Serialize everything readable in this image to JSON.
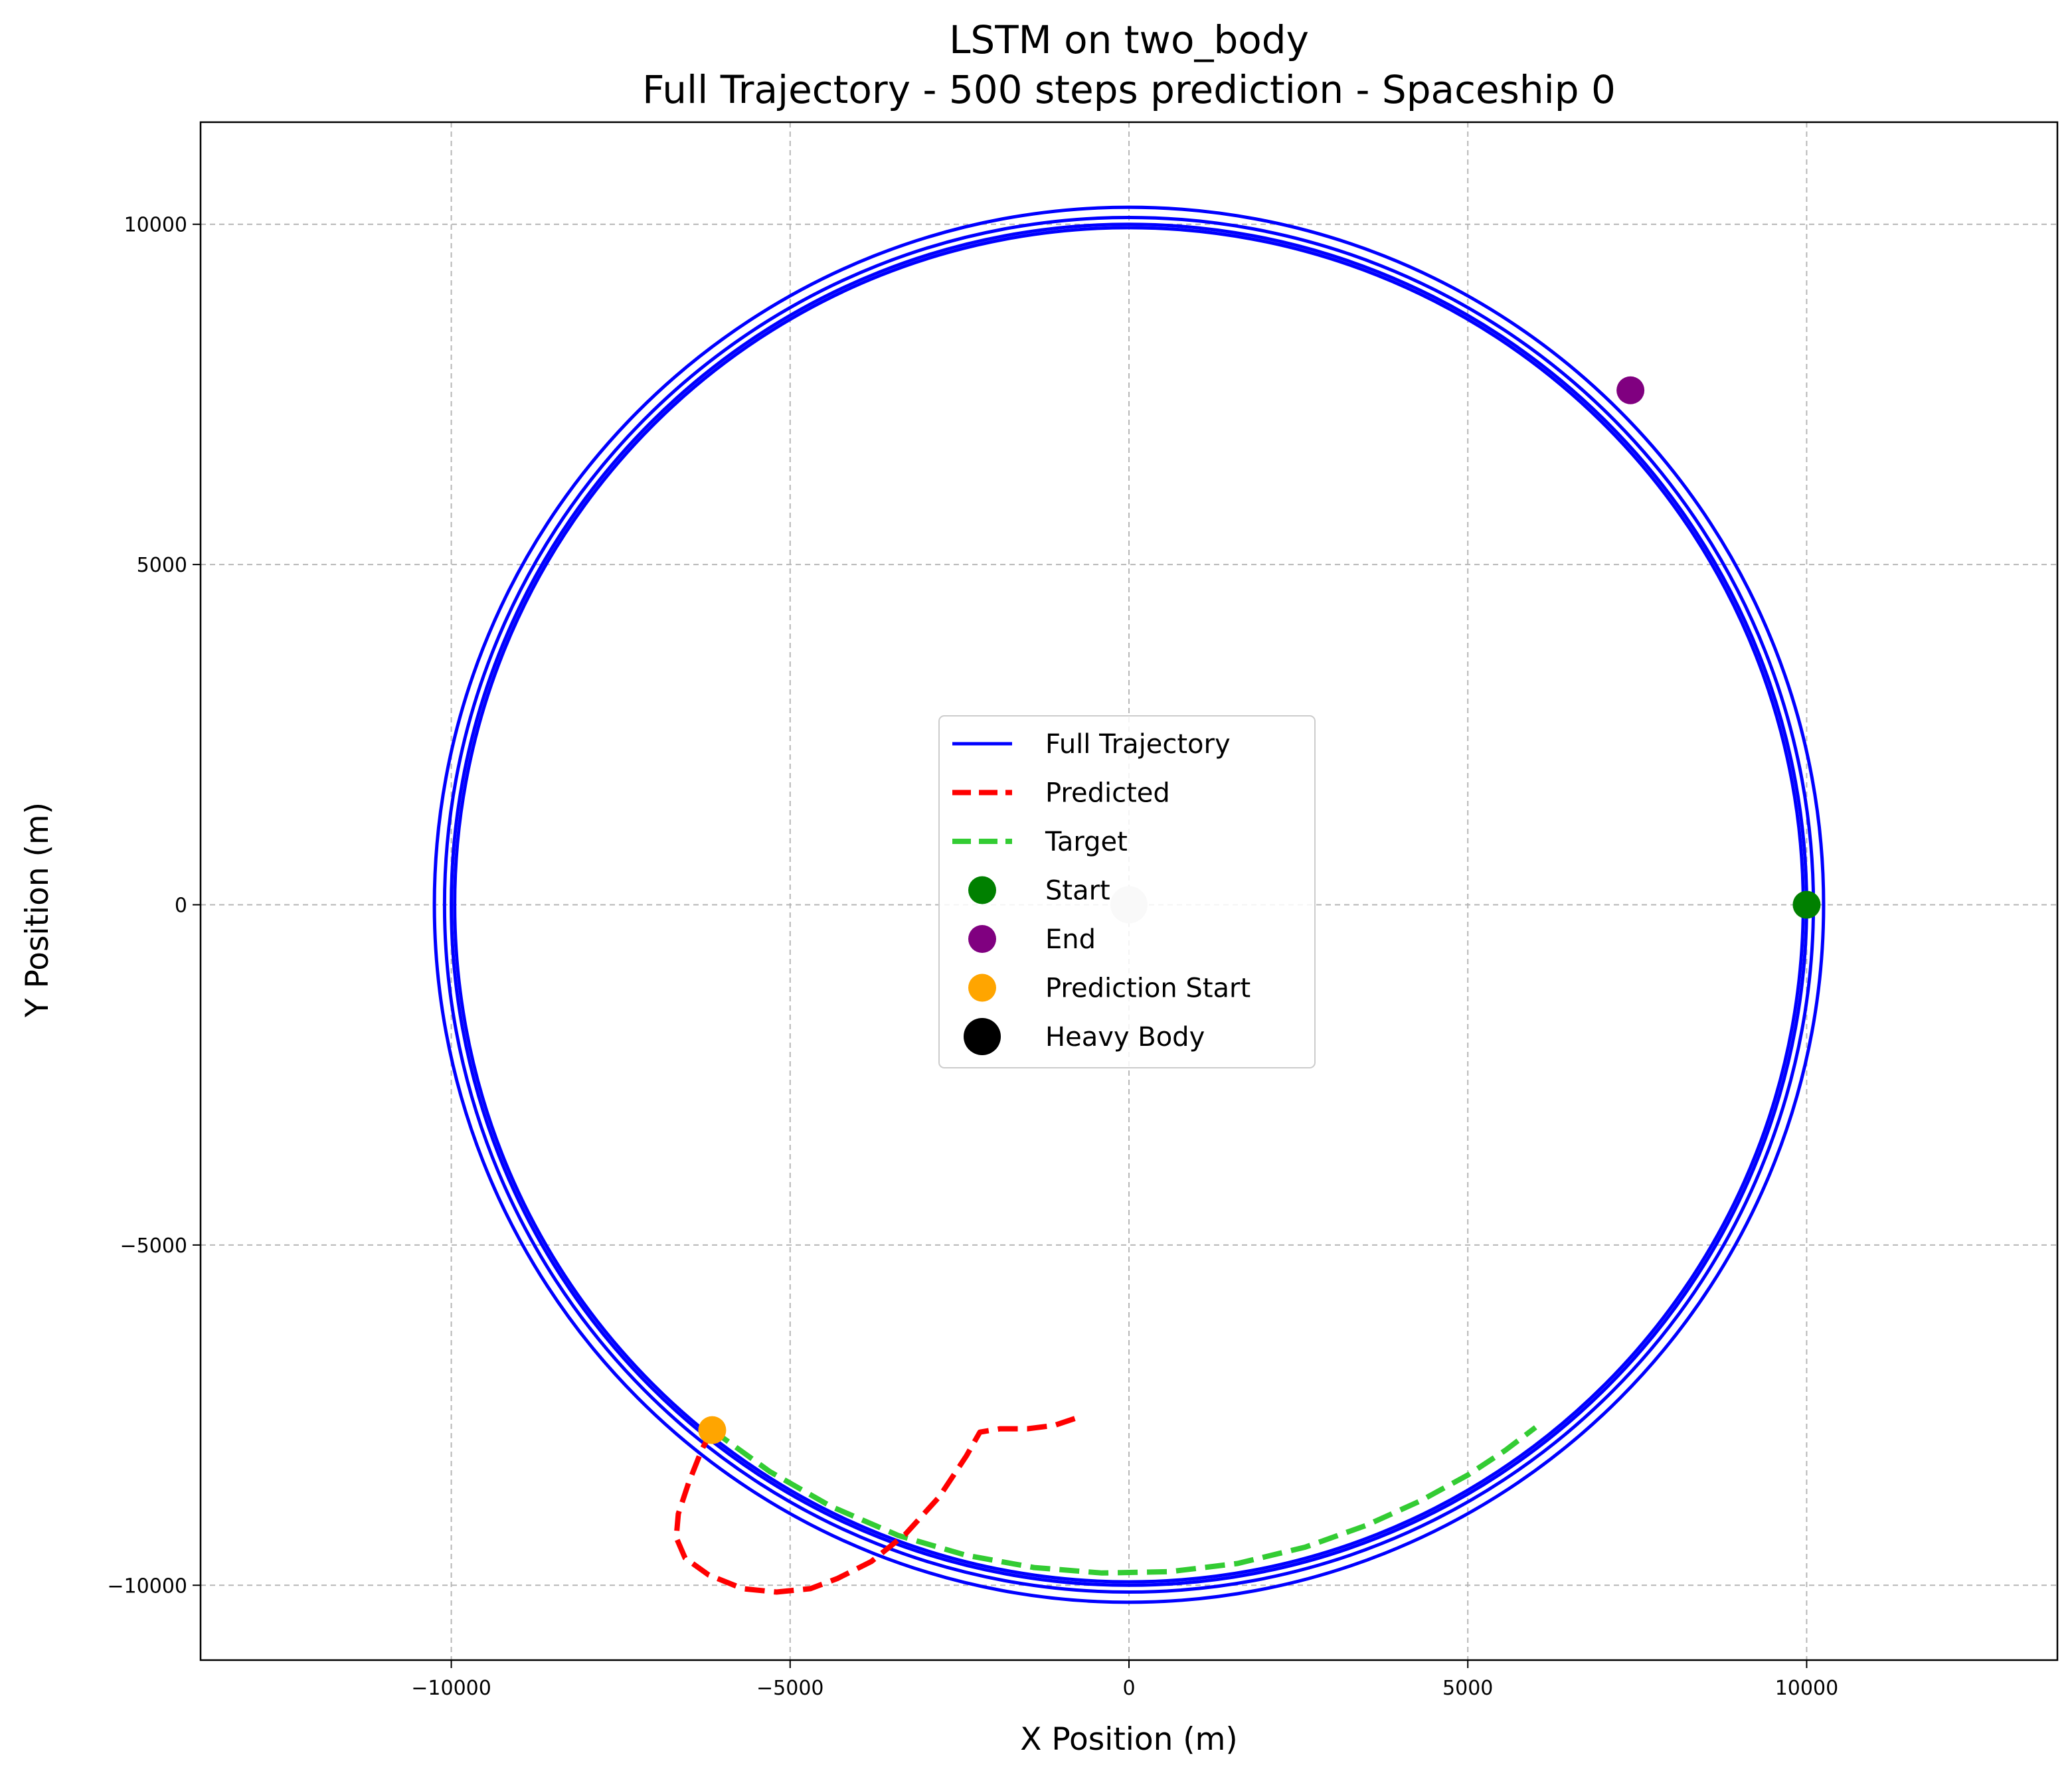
{
  "chart_data": {
    "type": "line",
    "title": "LSTM on two_body",
    "subtitle": "Full Trajectory - 500 steps prediction - Spaceship 0",
    "xlabel": "X Position (m)",
    "ylabel": "Y Position (m)",
    "xlim": [
      -13700,
      13700
    ],
    "ylim": [
      -11100,
      11500
    ],
    "xticks": [
      -10000,
      -5000,
      0,
      5000,
      10000
    ],
    "yticks": [
      -10000,
      -5000,
      0,
      5000,
      10000
    ],
    "xtick_labels": [
      "−10000",
      "−5000",
      "0",
      "5000",
      "10000"
    ],
    "ytick_labels": [
      "−10000",
      "−5000",
      "0",
      "5000",
      "10000"
    ],
    "grid": true,
    "legend_position": "center",
    "series": [
      {
        "name": "Full Trajectory",
        "style": "solid",
        "color": "#0000ff",
        "orbits": [
          {
            "radius": 10000
          },
          {
            "radius": 9950
          },
          {
            "radius": 10100
          },
          {
            "radius": 10250
          }
        ]
      },
      {
        "name": "Predicted",
        "style": "dashed",
        "color": "#ff0000",
        "x": [
          -6150,
          -6300,
          -6500,
          -6650,
          -6680,
          -6550,
          -6200,
          -5700,
          -5200,
          -4700,
          -4300,
          -3800,
          -3300,
          -2800,
          -2400,
          -2200,
          -1900,
          -1500,
          -1100,
          -800
        ],
        "y": [
          -7720,
          -8000,
          -8500,
          -8950,
          -9300,
          -9600,
          -9850,
          -10050,
          -10100,
          -10050,
          -9900,
          -9650,
          -9250,
          -8700,
          -8100,
          -7750,
          -7700,
          -7700,
          -7650,
          -7550
        ]
      },
      {
        "name": "Target",
        "style": "dashed",
        "color": "#33cc33",
        "x": [
          -6150,
          -5300,
          -4400,
          -3400,
          -2400,
          -1400,
          -400,
          600,
          1600,
          2600,
          3500,
          4300,
          5000,
          5550,
          6000
        ],
        "y": [
          -7720,
          -8330,
          -8840,
          -9270,
          -9560,
          -9740,
          -9820,
          -9800,
          -9680,
          -9440,
          -9120,
          -8760,
          -8380,
          -8020,
          -7680
        ]
      }
    ],
    "markers": [
      {
        "name": "Start",
        "x": 10000,
        "y": 0,
        "color": "#008000"
      },
      {
        "name": "End",
        "x": 7400,
        "y": 7560,
        "color": "#800080"
      },
      {
        "name": "Prediction Start",
        "x": -6150,
        "y": -7720,
        "color": "#ffa500"
      },
      {
        "name": "Heavy Body",
        "x": 0,
        "y": 0,
        "color": "#000000",
        "plot_color": "#d3d3d3"
      }
    ]
  }
}
